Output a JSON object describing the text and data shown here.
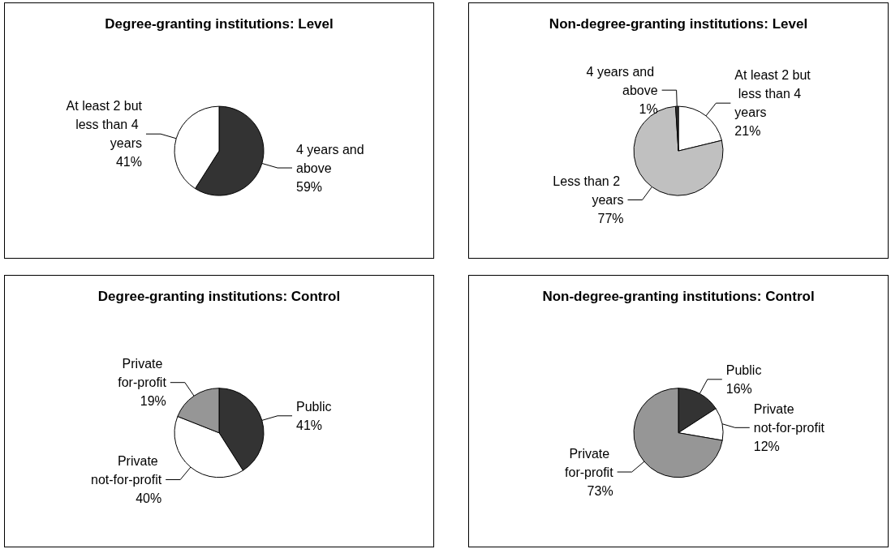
{
  "chart_data": [
    {
      "type": "pie",
      "title": "Degree-granting institutions: Level",
      "categories": [
        "4 years and above",
        "At least 2 but less than 4 years"
      ],
      "values": [
        59,
        41
      ],
      "colors": [
        "#333333",
        "#ffffff"
      ],
      "value_labels": [
        "59%",
        "41%"
      ],
      "legend": false
    },
    {
      "type": "pie",
      "title": "Non-degree-granting institutions: Level",
      "categories": [
        "At least 2 but less than 4 years",
        "Less than 2 years",
        "4 years and above"
      ],
      "values": [
        21,
        77,
        1
      ],
      "colors": [
        "#ffffff",
        "#c0c0c0",
        "#333333"
      ],
      "value_labels": [
        "21%",
        "77%",
        "1%"
      ],
      "legend": false
    },
    {
      "type": "pie",
      "title": "Degree-granting institutions: Control",
      "categories": [
        "Public",
        "Private not-for-profit",
        "Private for-profit"
      ],
      "values": [
        41,
        40,
        19
      ],
      "colors": [
        "#333333",
        "#ffffff",
        "#969696"
      ],
      "value_labels": [
        "41%",
        "40%",
        "19%"
      ],
      "legend": false
    },
    {
      "type": "pie",
      "title": "Non-degree-granting institutions: Control",
      "categories": [
        "Public",
        "Private not-for-profit",
        "Private for-profit"
      ],
      "values": [
        16,
        12,
        73
      ],
      "colors": [
        "#333333",
        "#ffffff",
        "#969696"
      ],
      "value_labels": [
        "16%",
        "12%",
        "73%"
      ],
      "legend": false
    }
  ]
}
